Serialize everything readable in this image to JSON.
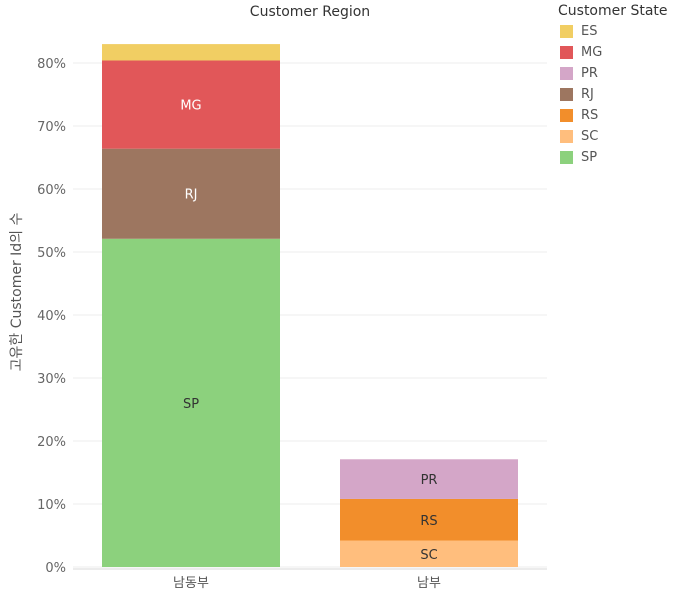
{
  "chart_data": {
    "type": "bar",
    "stacked": true,
    "title": "Customer Region",
    "xlabel": "",
    "ylabel": "고유한 Customer Id의 수",
    "ylim": [
      0,
      86
    ],
    "yticks": [
      "0%",
      "10%",
      "20%",
      "30%",
      "40%",
      "50%",
      "60%",
      "70%",
      "80%"
    ],
    "categories": [
      "남동부",
      "남부"
    ],
    "legend_title": "Customer State",
    "legend_placement": "right",
    "grid": true,
    "series": [
      {
        "name": "SC",
        "color": "#ffbe7d",
        "values": [
          0,
          4.2
        ]
      },
      {
        "name": "RS",
        "color": "#f28e2b",
        "values": [
          0,
          6.6
        ]
      },
      {
        "name": "PR",
        "color": "#d4a6c8",
        "values": [
          0,
          6.3
        ]
      },
      {
        "name": "SP",
        "color": "#8cd17d",
        "values": [
          52.1,
          0
        ]
      },
      {
        "name": "RJ",
        "color": "#9d7660",
        "values": [
          14.3,
          0
        ]
      },
      {
        "name": "MG",
        "color": "#e15759",
        "values": [
          14.0,
          0
        ]
      },
      {
        "name": "ES",
        "color": "#f1ce63",
        "values": [
          2.6,
          0
        ]
      }
    ],
    "legend_order": [
      "ES",
      "MG",
      "PR",
      "RJ",
      "RS",
      "SC",
      "SP"
    ],
    "segment_labels": {
      "SP": {
        "text": "SP",
        "color": "#333333"
      },
      "RJ": {
        "text": "RJ",
        "color": "#ffffff"
      },
      "MG": {
        "text": "MG",
        "color": "#ffffff"
      },
      "PR": {
        "text": "PR",
        "color": "#333333"
      },
      "RS": {
        "text": "RS",
        "color": "#333333"
      },
      "SC": {
        "text": "SC",
        "color": "#333333"
      }
    }
  }
}
